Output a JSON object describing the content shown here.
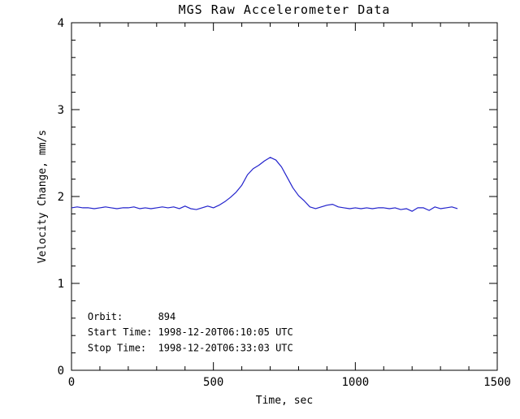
{
  "chart_data": {
    "type": "line",
    "title": "MGS Raw Accelerometer Data",
    "xlabel": "Time, sec",
    "ylabel": "Velocity Change, mm/s",
    "xlim": [
      0,
      1500
    ],
    "ylim": [
      0,
      4
    ],
    "xticks": [
      0,
      500,
      1000,
      1500
    ],
    "xtick_labels": [
      "0",
      "500",
      "1000",
      "1500"
    ],
    "x_minor_step": 100,
    "yticks": [
      0,
      1,
      2,
      3,
      4
    ],
    "ytick_labels": [
      "0",
      "1",
      "2",
      "3",
      "4"
    ],
    "y_minor_step": 0.2,
    "grid": false,
    "line_color": "#2222cc",
    "axis_color": "#000000",
    "background_color": "#ffffff",
    "series": [
      {
        "name": "velocity-change",
        "x": [
          0,
          20,
          40,
          60,
          80,
          100,
          120,
          140,
          160,
          180,
          200,
          220,
          240,
          260,
          280,
          300,
          320,
          340,
          360,
          380,
          400,
          420,
          440,
          460,
          480,
          500,
          520,
          540,
          560,
          580,
          600,
          620,
          640,
          660,
          680,
          700,
          720,
          740,
          760,
          780,
          800,
          820,
          840,
          860,
          880,
          900,
          920,
          940,
          960,
          980,
          1000,
          1020,
          1040,
          1060,
          1080,
          1100,
          1120,
          1140,
          1160,
          1180,
          1200,
          1220,
          1240,
          1260,
          1280,
          1300,
          1320,
          1340,
          1360
        ],
        "y": [
          1.87,
          1.88,
          1.87,
          1.87,
          1.86,
          1.87,
          1.88,
          1.87,
          1.86,
          1.87,
          1.87,
          1.88,
          1.86,
          1.87,
          1.86,
          1.87,
          1.88,
          1.87,
          1.88,
          1.86,
          1.89,
          1.86,
          1.85,
          1.87,
          1.89,
          1.87,
          1.9,
          1.94,
          1.99,
          2.05,
          2.13,
          2.25,
          2.32,
          2.36,
          2.41,
          2.45,
          2.42,
          2.34,
          2.22,
          2.1,
          2.01,
          1.95,
          1.88,
          1.86,
          1.88,
          1.9,
          1.91,
          1.88,
          1.87,
          1.86,
          1.87,
          1.86,
          1.87,
          1.86,
          1.87,
          1.87,
          1.86,
          1.87,
          1.85,
          1.86,
          1.83,
          1.87,
          1.87,
          1.84,
          1.88,
          1.86,
          1.87,
          1.88,
          1.86
        ]
      }
    ],
    "annotations": [
      {
        "text": "Orbit:      894",
        "x": 57,
        "y": 0.58
      },
      {
        "text": "Start Time: 1998-12-20T06:10:05 UTC",
        "x": 57,
        "y": 0.4
      },
      {
        "text": "Stop Time:  1998-12-20T06:33:03 UTC",
        "x": 57,
        "y": 0.22
      }
    ]
  }
}
